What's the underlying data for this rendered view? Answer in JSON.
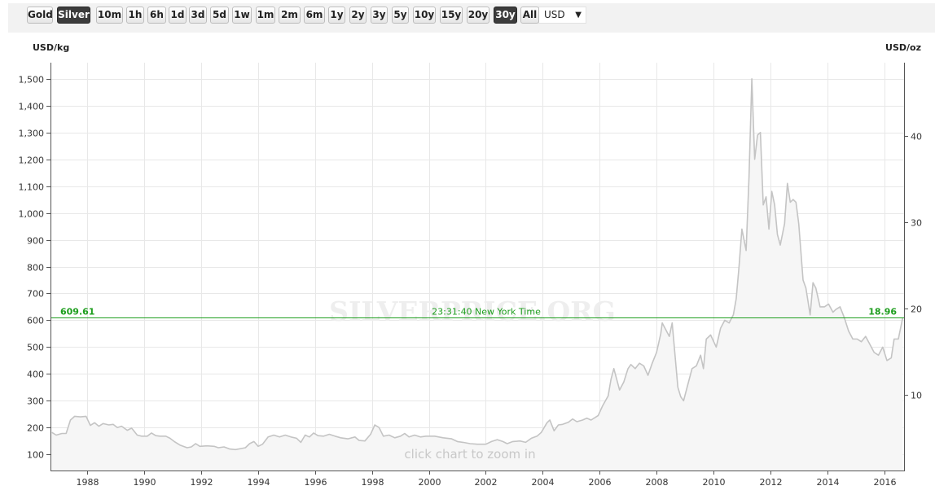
{
  "toolbar": {
    "metals": [
      {
        "label": "Gold",
        "active": false
      },
      {
        "label": "Silver",
        "active": true
      }
    ],
    "ranges": [
      {
        "label": "10m",
        "active": false
      },
      {
        "label": "1h",
        "active": false
      },
      {
        "label": "6h",
        "active": false
      },
      {
        "label": "1d",
        "active": false
      },
      {
        "label": "3d",
        "active": false
      },
      {
        "label": "5d",
        "active": false
      },
      {
        "label": "1w",
        "active": false
      },
      {
        "label": "1m",
        "active": false
      },
      {
        "label": "2m",
        "active": false
      },
      {
        "label": "6m",
        "active": false
      },
      {
        "label": "1y",
        "active": false
      },
      {
        "label": "2y",
        "active": false
      },
      {
        "label": "3y",
        "active": false
      },
      {
        "label": "5y",
        "active": false
      },
      {
        "label": "10y",
        "active": false
      },
      {
        "label": "15y",
        "active": false
      },
      {
        "label": "20y",
        "active": false
      },
      {
        "label": "30y",
        "active": true
      },
      {
        "label": "All",
        "active": false
      }
    ],
    "currency": "USD",
    "currency_arrow": "▼"
  },
  "chart_data": {
    "type": "area",
    "left_unit": "USD/kg",
    "right_unit": "USD/oz",
    "watermark": "SILVERPRICE.ORG",
    "hint": "click chart to zoom in",
    "current": {
      "kg": "609.61",
      "oz": "18.96",
      "time": "23:31:40 New York Time",
      "value": 609.61
    },
    "xlim": [
      1986.7,
      2016.7
    ],
    "ylim": [
      40,
      1560
    ],
    "x_ticks": [
      "1988",
      "1990",
      "1992",
      "1994",
      "1996",
      "1998",
      "2000",
      "2002",
      "2004",
      "2006",
      "2008",
      "2010",
      "2012",
      "2014",
      "2016"
    ],
    "y_ticks": [
      "100",
      "200",
      "300",
      "400",
      "500",
      "600",
      "700",
      "800",
      "900",
      "1,000",
      "1,100",
      "1,200",
      "1,300",
      "1,400",
      "1,500"
    ],
    "y_right_ticks": [
      "10",
      "20",
      "30",
      "40"
    ],
    "colors": {
      "line": "#c4c4c4",
      "fill": "#f6f6f6",
      "current": "#1e9e1e"
    },
    "points": [
      [
        1986.75,
        182
      ],
      [
        1986.9,
        172
      ],
      [
        1987.1,
        178
      ],
      [
        1987.25,
        178
      ],
      [
        1987.4,
        228
      ],
      [
        1987.55,
        242
      ],
      [
        1987.75,
        240
      ],
      [
        1987.95,
        242
      ],
      [
        1988.1,
        208
      ],
      [
        1988.25,
        218
      ],
      [
        1988.4,
        205
      ],
      [
        1988.55,
        215
      ],
      [
        1988.75,
        210
      ],
      [
        1988.9,
        212
      ],
      [
        1989.05,
        200
      ],
      [
        1989.2,
        205
      ],
      [
        1989.4,
        190
      ],
      [
        1989.55,
        198
      ],
      [
        1989.75,
        172
      ],
      [
        1989.9,
        168
      ],
      [
        1990.1,
        168
      ],
      [
        1990.25,
        180
      ],
      [
        1990.4,
        170
      ],
      [
        1990.55,
        168
      ],
      [
        1990.75,
        168
      ],
      [
        1990.9,
        160
      ],
      [
        1991.05,
        148
      ],
      [
        1991.25,
        135
      ],
      [
        1991.5,
        125
      ],
      [
        1991.65,
        128
      ],
      [
        1991.8,
        140
      ],
      [
        1991.95,
        130
      ],
      [
        1992.2,
        132
      ],
      [
        1992.45,
        130
      ],
      [
        1992.6,
        125
      ],
      [
        1992.8,
        128
      ],
      [
        1993.0,
        120
      ],
      [
        1993.2,
        118
      ],
      [
        1993.4,
        122
      ],
      [
        1993.55,
        125
      ],
      [
        1993.7,
        140
      ],
      [
        1993.85,
        148
      ],
      [
        1994.0,
        130
      ],
      [
        1994.15,
        138
      ],
      [
        1994.35,
        165
      ],
      [
        1994.55,
        172
      ],
      [
        1994.75,
        165
      ],
      [
        1994.95,
        172
      ],
      [
        1995.15,
        165
      ],
      [
        1995.35,
        160
      ],
      [
        1995.5,
        145
      ],
      [
        1995.65,
        172
      ],
      [
        1995.8,
        165
      ],
      [
        1995.95,
        180
      ],
      [
        1996.1,
        170
      ],
      [
        1996.3,
        168
      ],
      [
        1996.5,
        175
      ],
      [
        1996.7,
        168
      ],
      [
        1996.9,
        162
      ],
      [
        1997.15,
        158
      ],
      [
        1997.4,
        165
      ],
      [
        1997.55,
        152
      ],
      [
        1997.75,
        150
      ],
      [
        1997.95,
        175
      ],
      [
        1998.1,
        210
      ],
      [
        1998.25,
        200
      ],
      [
        1998.4,
        168
      ],
      [
        1998.6,
        172
      ],
      [
        1998.8,
        162
      ],
      [
        1999.0,
        168
      ],
      [
        1999.15,
        178
      ],
      [
        1999.3,
        165
      ],
      [
        1999.5,
        172
      ],
      [
        1999.7,
        165
      ],
      [
        1999.9,
        168
      ],
      [
        2000.2,
        168
      ],
      [
        2000.5,
        162
      ],
      [
        2000.8,
        158
      ],
      [
        2001.0,
        148
      ],
      [
        2001.2,
        145
      ],
      [
        2001.45,
        140
      ],
      [
        2001.7,
        138
      ],
      [
        2002.0,
        138
      ],
      [
        2002.2,
        148
      ],
      [
        2002.4,
        155
      ],
      [
        2002.6,
        148
      ],
      [
        2002.75,
        140
      ],
      [
        2002.95,
        148
      ],
      [
        2003.2,
        150
      ],
      [
        2003.4,
        145
      ],
      [
        2003.6,
        160
      ],
      [
        2003.8,
        168
      ],
      [
        2003.95,
        182
      ],
      [
        2004.15,
        218
      ],
      [
        2004.25,
        228
      ],
      [
        2004.4,
        188
      ],
      [
        2004.55,
        210
      ],
      [
        2004.7,
        212
      ],
      [
        2004.9,
        220
      ],
      [
        2005.05,
        232
      ],
      [
        2005.2,
        222
      ],
      [
        2005.4,
        228
      ],
      [
        2005.55,
        235
      ],
      [
        2005.7,
        228
      ],
      [
        2005.85,
        238
      ],
      [
        2005.95,
        245
      ],
      [
        2006.1,
        280
      ],
      [
        2006.3,
        318
      ],
      [
        2006.4,
        380
      ],
      [
        2006.5,
        420
      ],
      [
        2006.6,
        380
      ],
      [
        2006.7,
        340
      ],
      [
        2006.85,
        370
      ],
      [
        2007.0,
        420
      ],
      [
        2007.1,
        435
      ],
      [
        2007.25,
        420
      ],
      [
        2007.4,
        440
      ],
      [
        2007.55,
        430
      ],
      [
        2007.7,
        395
      ],
      [
        2007.85,
        440
      ],
      [
        2008.0,
        480
      ],
      [
        2008.15,
        550
      ],
      [
        2008.2,
        590
      ],
      [
        2008.35,
        560
      ],
      [
        2008.45,
        540
      ],
      [
        2008.55,
        590
      ],
      [
        2008.65,
        470
      ],
      [
        2008.75,
        350
      ],
      [
        2008.85,
        315
      ],
      [
        2008.95,
        300
      ],
      [
        2009.1,
        360
      ],
      [
        2009.25,
        420
      ],
      [
        2009.4,
        430
      ],
      [
        2009.55,
        470
      ],
      [
        2009.65,
        420
      ],
      [
        2009.75,
        530
      ],
      [
        2009.9,
        545
      ],
      [
        2010.1,
        500
      ],
      [
        2010.25,
        570
      ],
      [
        2010.4,
        600
      ],
      [
        2010.55,
        590
      ],
      [
        2010.7,
        620
      ],
      [
        2010.8,
        680
      ],
      [
        2010.9,
        800
      ],
      [
        2011.0,
        940
      ],
      [
        2011.15,
        860
      ],
      [
        2011.25,
        1130
      ],
      [
        2011.35,
        1500
      ],
      [
        2011.45,
        1200
      ],
      [
        2011.55,
        1290
      ],
      [
        2011.65,
        1300
      ],
      [
        2011.75,
        1030
      ],
      [
        2011.85,
        1060
      ],
      [
        2011.95,
        940
      ],
      [
        2012.05,
        1080
      ],
      [
        2012.15,
        1030
      ],
      [
        2012.25,
        920
      ],
      [
        2012.35,
        880
      ],
      [
        2012.5,
        960
      ],
      [
        2012.6,
        1110
      ],
      [
        2012.7,
        1040
      ],
      [
        2012.8,
        1050
      ],
      [
        2012.9,
        1040
      ],
      [
        2013.0,
        960
      ],
      [
        2013.15,
        750
      ],
      [
        2013.25,
        720
      ],
      [
        2013.4,
        620
      ],
      [
        2013.5,
        740
      ],
      [
        2013.6,
        720
      ],
      [
        2013.75,
        650
      ],
      [
        2013.9,
        650
      ],
      [
        2014.05,
        660
      ],
      [
        2014.2,
        630
      ],
      [
        2014.3,
        640
      ],
      [
        2014.45,
        650
      ],
      [
        2014.6,
        610
      ],
      [
        2014.75,
        560
      ],
      [
        2014.9,
        530
      ],
      [
        2015.05,
        530
      ],
      [
        2015.2,
        520
      ],
      [
        2015.35,
        540
      ],
      [
        2015.5,
        510
      ],
      [
        2015.65,
        480
      ],
      [
        2015.8,
        470
      ],
      [
        2015.95,
        500
      ],
      [
        2016.1,
        450
      ],
      [
        2016.25,
        460
      ],
      [
        2016.35,
        530
      ],
      [
        2016.5,
        530
      ],
      [
        2016.65,
        609
      ]
    ]
  }
}
